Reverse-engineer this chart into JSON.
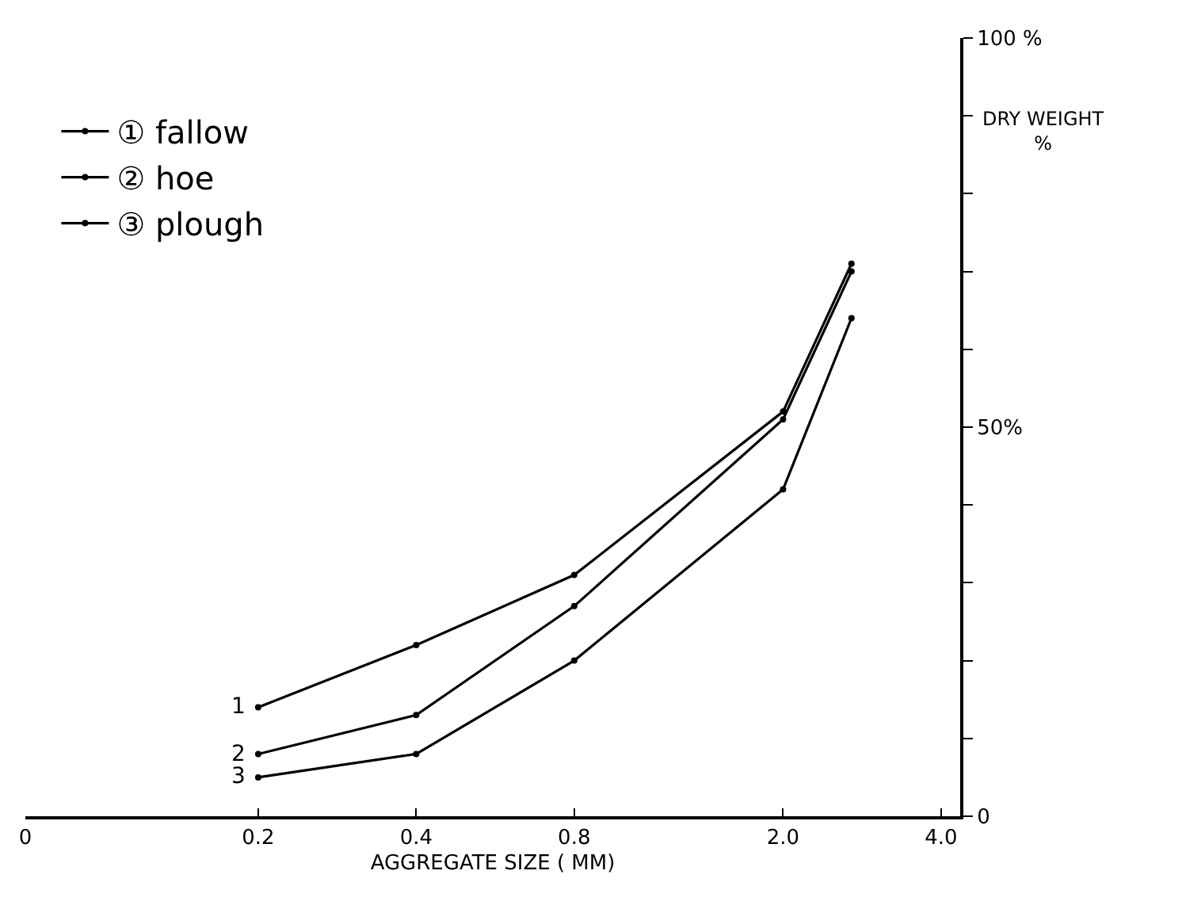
{
  "chart_data": {
    "type": "line",
    "xlabel": "AGGREGATE SIZE ( MM)",
    "ylabel": "DRY WEIGHT\n%",
    "x": [
      0.2,
      0.4,
      0.8,
      2.0,
      2.7
    ],
    "series": [
      {
        "name": "① fallow",
        "color": "#000000",
        "values": [
          14,
          22,
          31,
          52,
          71
        ]
      },
      {
        "name": "② hoe",
        "color": "#000000",
        "values": [
          8,
          13,
          27,
          51,
          70
        ]
      },
      {
        "name": "③ plough",
        "color": "#000000",
        "values": [
          5,
          8,
          20,
          42,
          64
        ]
      }
    ],
    "annotations": [
      "1",
      "2",
      "3"
    ],
    "log": "x",
    "xlim": [
      0.072,
      4.35
    ],
    "xticks": [
      {
        "value": 0.072,
        "label": "0"
      },
      {
        "value": 0.2,
        "label": "0.2"
      },
      {
        "value": 0.4,
        "label": "0.4"
      },
      {
        "value": 0.8,
        "label": "0.8"
      },
      {
        "value": 2.0,
        "label": "2.0"
      },
      {
        "value": 4.0,
        "label": "4.0"
      }
    ],
    "ylim": [
      0,
      100
    ],
    "yticks": [
      0,
      {
        "value": 10,
        "label": null
      },
      {
        "value": 20,
        "label": null
      },
      {
        "value": 30,
        "label": null
      },
      {
        "value": 40,
        "label": null
      },
      {
        "value": 50,
        "label": "50%"
      },
      {
        "value": 60,
        "label": null
      },
      {
        "value": 70,
        "label": null
      },
      {
        "value": 80,
        "label": null
      },
      {
        "value": 90,
        "label": null
      },
      {
        "value": 100,
        "label": "100 %"
      }
    ],
    "legend": "top left",
    "marker": "circle",
    "line_style": "solid"
  }
}
